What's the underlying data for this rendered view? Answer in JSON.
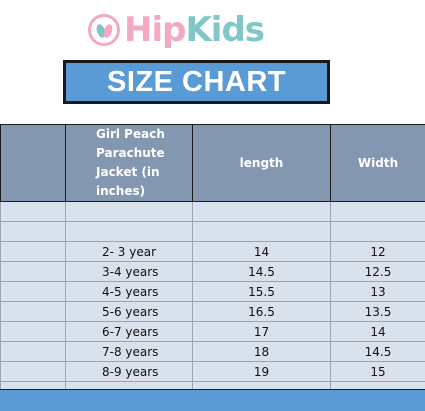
{
  "brand": {
    "hip": "Hip",
    "kids": "Kids"
  },
  "title": "SIZE CHART",
  "table": {
    "headers": {
      "col0": "",
      "product": "Girl Peach Parachute Jacket (in inches)",
      "length": "length",
      "width": "Width"
    },
    "rows": [
      {
        "size": "",
        "length": "",
        "width": ""
      },
      {
        "size": "",
        "length": "",
        "width": ""
      },
      {
        "size": "2- 3 year",
        "length": "14",
        "width": "12"
      },
      {
        "size": "3-4 years",
        "length": "14.5",
        "width": "12.5"
      },
      {
        "size": "4-5 years",
        "length": "15.5",
        "width": "13"
      },
      {
        "size": "5-6 years",
        "length": "16.5",
        "width": "13.5"
      },
      {
        "size": "6-7 years",
        "length": "17",
        "width": "14"
      },
      {
        "size": "7-8 years",
        "length": "18",
        "width": "14.5"
      },
      {
        "size": "8-9 years",
        "length": "19",
        "width": "15"
      },
      {
        "size": "",
        "length": "",
        "width": ""
      }
    ]
  },
  "colors": {
    "header_bg": "#8497b0",
    "row_bg": "#d9e1ec",
    "title_bg": "#5b9bd5",
    "logo_pink": "#f2a9c4",
    "logo_teal": "#7fc7c9"
  }
}
